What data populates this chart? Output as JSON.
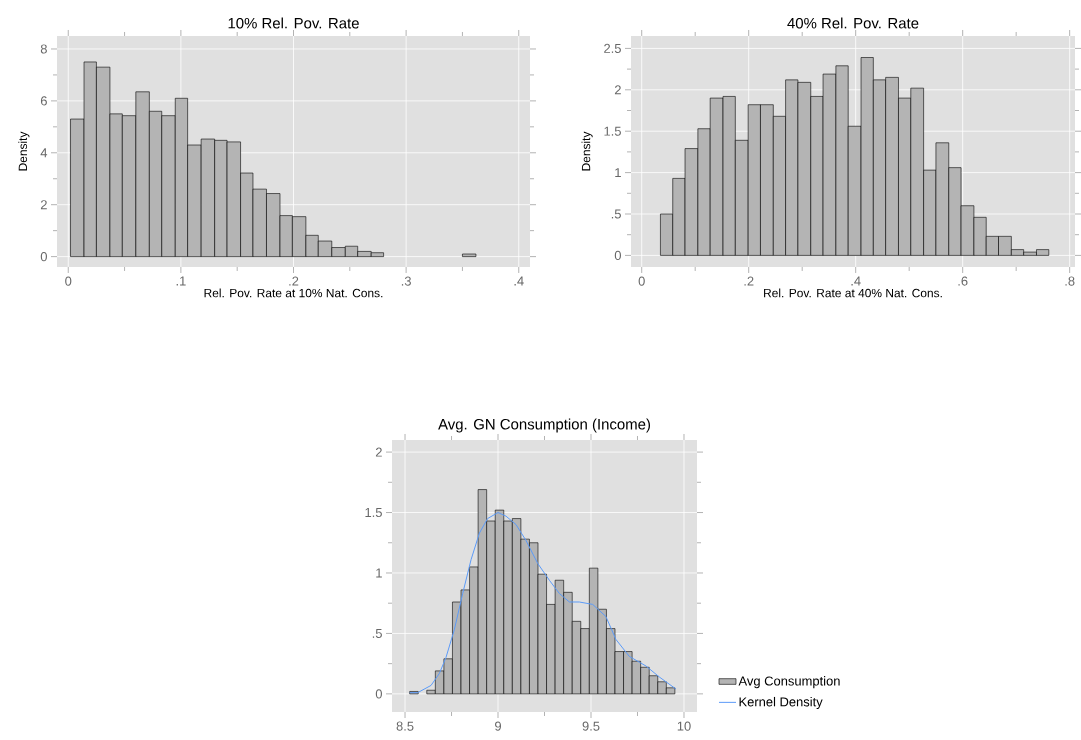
{
  "chart_data": [
    {
      "type": "histogram",
      "title": "10% Rel. Pov. Rate",
      "xlabel": "Rel. Pov. Rate at 10% Nat. Cons.",
      "ylabel": "Density",
      "color": "#b4b4b4",
      "bins": [
        0.002,
        0.014,
        0.025,
        0.037,
        0.048,
        0.06,
        0.072,
        0.083,
        0.095,
        0.106,
        0.118,
        0.13,
        0.141,
        0.153,
        0.164,
        0.176,
        0.188,
        0.199,
        0.211,
        0.222,
        0.234,
        0.246,
        0.257,
        0.269,
        0.28,
        0.35,
        0.362
      ],
      "values": [
        5.3,
        7.5,
        7.3,
        5.5,
        5.43,
        6.35,
        5.6,
        5.43,
        6.1,
        4.3,
        4.53,
        4.48,
        4.42,
        3.22,
        2.6,
        2.43,
        1.58,
        1.54,
        0.82,
        0.6,
        0.35,
        0.4,
        0.2,
        0.15,
        0,
        0.1
      ],
      "xlim": [
        -0.01,
        0.41
      ],
      "ylim": [
        -0.4,
        8.5
      ],
      "xticks": [
        0,
        {
          "value": 0.05,
          "label": null
        },
        {
          "value": 0.1,
          "label": ".1"
        },
        {
          "value": 0.15,
          "label": null
        },
        {
          "value": 0.2,
          "label": ".2"
        },
        {
          "value": 0.25,
          "label": null
        },
        {
          "value": 0.3,
          "label": ".3"
        },
        {
          "value": 0.35,
          "label": null
        },
        {
          "value": 0.4,
          "label": ".4"
        }
      ],
      "yticks": [
        0,
        {
          "value": 1,
          "label": null
        },
        2,
        {
          "value": 3,
          "label": null
        },
        4,
        {
          "value": 5,
          "label": null
        },
        6,
        {
          "value": 7,
          "label": null
        },
        8
      ],
      "grid": true
    },
    {
      "type": "histogram",
      "title": "40% Rel. Pov. Rate",
      "xlabel": "Rel. Pov. Rate at 40% Nat. Cons.",
      "ylabel": "Density",
      "color": "#b4b4b4",
      "bins": [
        0.035,
        0.058,
        0.081,
        0.105,
        0.128,
        0.152,
        0.175,
        0.199,
        0.222,
        0.246,
        0.269,
        0.292,
        0.316,
        0.339,
        0.363,
        0.386,
        0.41,
        0.433,
        0.456,
        0.48,
        0.503,
        0.527,
        0.55,
        0.574,
        0.597,
        0.621,
        0.644,
        0.667,
        0.691,
        0.714,
        0.738,
        0.761
      ],
      "values": [
        0.5,
        0.93,
        1.29,
        1.53,
        1.9,
        1.92,
        1.39,
        1.82,
        1.82,
        1.68,
        2.12,
        2.09,
        1.92,
        2.19,
        2.29,
        1.56,
        2.39,
        2.12,
        2.15,
        1.9,
        2.02,
        1.03,
        1.36,
        1.06,
        0.6,
        0.46,
        0.23,
        0.23,
        0.07,
        0.04,
        0.07
      ],
      "xlim": [
        -0.02,
        0.81
      ],
      "ylim": [
        -0.14,
        2.65
      ],
      "xticks": [
        0,
        {
          "value": 0.1,
          "label": null
        },
        {
          "value": 0.2,
          "label": ".2"
        },
        {
          "value": 0.3,
          "label": null
        },
        {
          "value": 0.4,
          "label": ".4"
        },
        {
          "value": 0.5,
          "label": null
        },
        {
          "value": 0.6,
          "label": ".6"
        },
        {
          "value": 0.7,
          "label": null
        },
        {
          "value": 0.8,
          "label": ".8"
        }
      ],
      "yticks": [
        0,
        {
          "value": 0.25,
          "label": null
        },
        {
          "value": 0.5,
          "label": ".5"
        },
        {
          "value": 0.75,
          "label": null
        },
        1,
        {
          "value": 1.25,
          "label": null
        },
        1.5,
        {
          "value": 1.75,
          "label": null
        },
        2,
        {
          "value": 2.25,
          "label": null
        },
        2.5
      ],
      "grid": true
    },
    {
      "type": "histogram",
      "title": "Avg. GN Consumption (Income)",
      "bins": [
        8.525,
        8.571,
        8.617,
        8.663,
        8.709,
        8.755,
        8.801,
        8.847,
        8.893,
        8.939,
        8.985,
        9.031,
        9.077,
        9.123,
        9.169,
        9.215,
        9.261,
        9.307,
        9.353,
        9.399,
        9.445,
        9.491,
        9.537,
        9.583,
        9.629,
        9.675,
        9.721,
        9.767,
        9.813,
        9.859,
        9.905,
        9.951
      ],
      "series": [
        {
          "name": "Avg Consumption",
          "type": "histogram",
          "color": "#b4b4b4",
          "values": [
            0.02,
            0,
            0.03,
            0.19,
            0.29,
            0.76,
            0.86,
            1.05,
            1.69,
            1.43,
            1.52,
            1.43,
            1.45,
            1.28,
            1.25,
            0.99,
            0.74,
            0.94,
            0.84,
            0.6,
            0.54,
            1.04,
            0.7,
            0.54,
            0.35,
            0.35,
            0.27,
            0.22,
            0.15,
            0.1,
            0.05
          ]
        },
        {
          "name": "Kernel Density",
          "type": "line",
          "color": "#5b9bf8",
          "x": [
            8.525,
            8.568,
            8.64,
            8.685,
            8.72,
            8.765,
            8.81,
            8.855,
            8.9,
            8.944,
            9.0,
            9.043,
            9.097,
            9.15,
            9.213,
            9.276,
            9.33,
            9.384,
            9.437,
            9.509,
            9.58,
            9.634,
            9.706,
            9.796,
            9.867,
            9.957
          ],
          "values": [
            0.01,
            0.01,
            0.07,
            0.17,
            0.3,
            0.53,
            0.83,
            1.11,
            1.33,
            1.45,
            1.5,
            1.47,
            1.4,
            1.27,
            1.08,
            0.94,
            0.83,
            0.76,
            0.76,
            0.74,
            0.64,
            0.45,
            0.31,
            0.23,
            0.14,
            0.04
          ]
        }
      ],
      "xlim": [
        8.43,
        10.07
      ],
      "ylim": [
        -0.15,
        2.1
      ],
      "xticks": [
        8.5,
        {
          "value": 8.75,
          "label": null
        },
        9,
        {
          "value": 9.25,
          "label": null
        },
        9.5,
        {
          "value": 9.75,
          "label": null
        },
        10
      ],
      "yticks": [
        0,
        {
          "value": 0.25,
          "label": null
        },
        {
          "value": 0.5,
          "label": ".5"
        },
        {
          "value": 0.75,
          "label": null
        },
        1,
        {
          "value": 1.25,
          "label": null
        },
        1.5,
        {
          "value": 1.75,
          "label": null
        },
        2
      ],
      "grid": true,
      "legend": "bottom right"
    }
  ]
}
